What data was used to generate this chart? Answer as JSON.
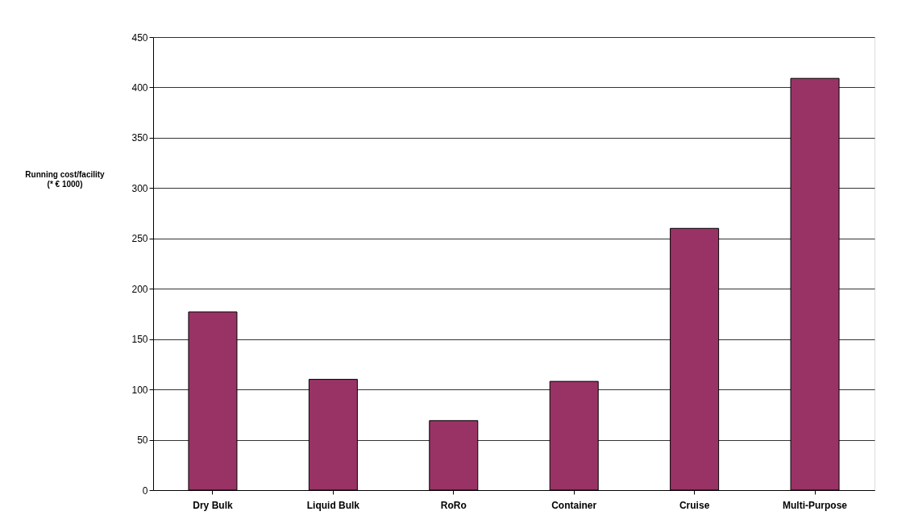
{
  "chart_data": {
    "type": "bar",
    "ylabel": "Running cost/facility\n(* € 1000)",
    "categories": [
      "Dry Bulk",
      "Liquid Bulk",
      "RoRo",
      "Container",
      "Cruise",
      "Multi-Purpose"
    ],
    "values": [
      177,
      110,
      69,
      108,
      260,
      409
    ],
    "color": "#993366",
    "ylim": [
      0,
      450
    ],
    "yticks": [
      0,
      50,
      100,
      150,
      200,
      250,
      300,
      350,
      400,
      450
    ],
    "grid": "y"
  }
}
